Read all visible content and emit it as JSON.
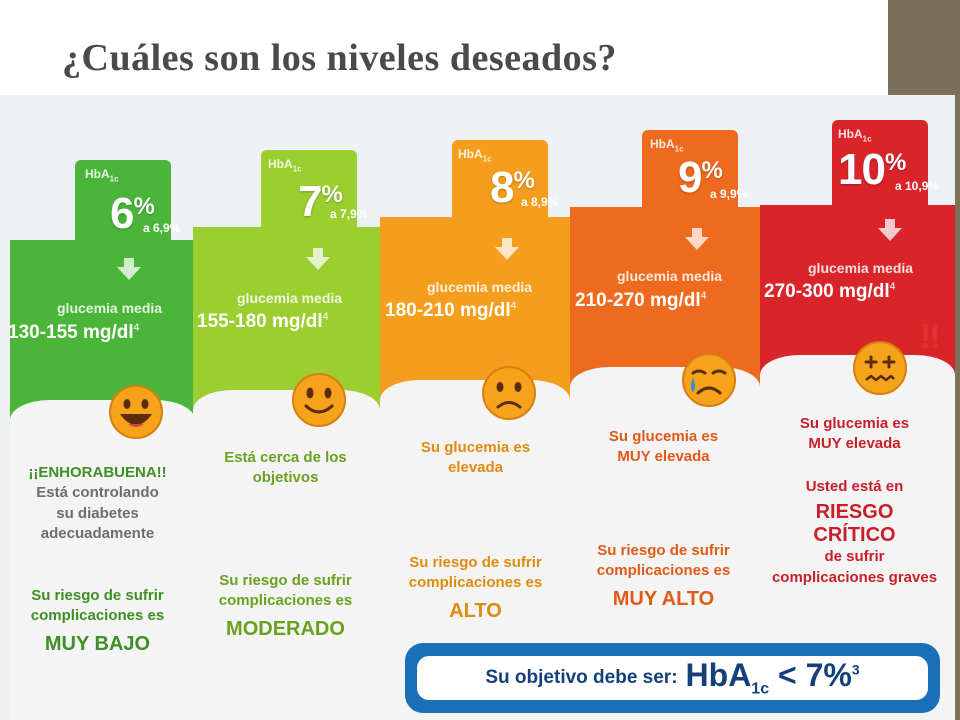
{
  "title": "¿Cuáles son los niveles deseados?",
  "hba_label": "HbA",
  "hba_sub": "1c",
  "glucemia_label": "glucemia media",
  "footnote": "4",
  "warning_marks": "!!",
  "colors": {
    "green": "#4bb53a",
    "lime": "#9bce2f",
    "orange": "#f59d1c",
    "orange_red": "#ee6a1f",
    "red": "#d9252a",
    "sidebar": "#7a7158",
    "objective_blue": "#1b6fb8"
  },
  "levels": [
    {
      "value": "6",
      "unit": "%",
      "range": "a 6,9%",
      "mgdl": "130-155 mg/dl",
      "face": "grinning-face-icon",
      "messages": [
        "¡¡ENHORABUENA!!",
        "Está controlando",
        "su diabetes",
        "adecuadamente"
      ],
      "risk_lines": [
        "Su riesgo de sufrir",
        "complicaciones es"
      ],
      "risk_level": "MUY BAJO"
    },
    {
      "value": "7",
      "unit": "%",
      "range": "a 7,9%",
      "mgdl": "155-180 mg/dl",
      "face": "smiling-face-icon",
      "messages": [
        "Está cerca de los",
        "objetivos"
      ],
      "risk_lines": [
        "Su riesgo de sufrir",
        "complicaciones es"
      ],
      "risk_level": "MODERADO"
    },
    {
      "value": "8",
      "unit": "%",
      "range": "a 8,9%",
      "mgdl": "180-210 mg/dl",
      "face": "frowning-face-icon",
      "messages": [
        "Su glucemia es",
        "elevada"
      ],
      "risk_lines": [
        "Su riesgo de sufrir",
        "complicaciones es"
      ],
      "risk_level": "ALTO"
    },
    {
      "value": "9",
      "unit": "%",
      "range": "a 9,9%",
      "mgdl": "210-270 mg/dl",
      "face": "crying-face-icon",
      "messages": [
        "Su glucemia es",
        "MUY elevada"
      ],
      "risk_lines": [
        "Su riesgo de sufrir",
        "complicaciones es"
      ],
      "risk_level": "MUY ALTO"
    },
    {
      "value": "10",
      "unit": "%",
      "range": "a 10,9%",
      "mgdl": "270-300 mg/dl",
      "face": "sick-face-icon",
      "messages": [
        "Su glucemia es",
        "MUY elevada"
      ],
      "risk_lines": [
        "Usted está en"
      ],
      "risk_level": "RIESGO CRÍTICO",
      "risk_tail": [
        "de sufrir",
        "complicaciones graves"
      ]
    }
  ],
  "objective": {
    "text": "Su objetivo debe ser:",
    "hba": "HbA",
    "hba_sub": "1c",
    "op": "< 7%",
    "ref": "3"
  }
}
